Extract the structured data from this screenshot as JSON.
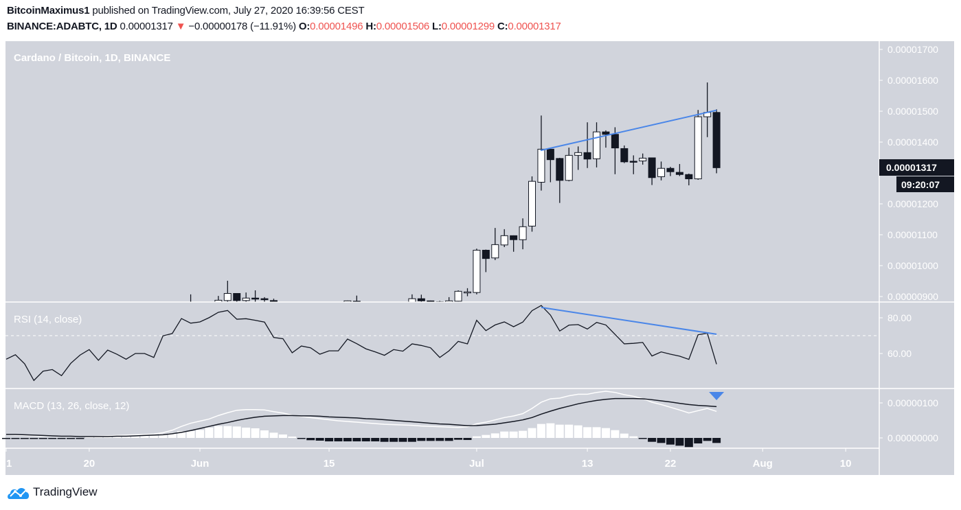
{
  "header": {
    "author": "BitcoinMaximus1",
    "published": " published on TradingView.com, July 27, 2020 16:39:56 CEST",
    "symbol": "BINANCE:ADABTC, 1D",
    "last": " 0.00001317",
    "change_icon": "down-triangle-icon",
    "change": " −0.00000178 (−11.91%)",
    "o_label": "O:",
    "o": "0.00001496",
    "h_label": "H:",
    "h": "0.00001506",
    "l_label": "L:",
    "l": "0.00001299",
    "c_label": "C:",
    "c": "0.00001317"
  },
  "footer": {
    "logo_text": "TradingView",
    "logo_icon": "tradingview-cloud-icon"
  },
  "colors": {
    "background": "#d1d4dc",
    "up_candle": "#ffffff",
    "down_candle": "#131722",
    "trendline": "#4a86e8",
    "negative": "#ef5350",
    "label_bg": "#131722"
  },
  "chart_data": [
    {
      "type": "candlestick",
      "title": "Cardano / Bitcoin, 1D, BINANCE",
      "price_ticks": [
        "0.00001700",
        "0.00001600",
        "0.00001500",
        "0.00001400",
        "0.00001200",
        "0.00001100",
        "0.00001000",
        "0.00000900"
      ],
      "ylim": [
        8.75e-06,
        1.74e-05
      ],
      "last_price_label": "0.00001317",
      "countdown_label": "09:20:07",
      "x_ticks": [
        {
          "label": "1",
          "date": "2020-05-11"
        },
        {
          "label": "20",
          "date": "2020-05-20"
        },
        {
          "label": "Jun",
          "date": "2020-06-01"
        },
        {
          "label": "15",
          "date": "2020-06-15"
        },
        {
          "label": "Jul",
          "date": "2020-07-01"
        },
        {
          "label": "13",
          "date": "2020-07-13"
        },
        {
          "label": "22",
          "date": "2020-07-22"
        },
        {
          "label": "Aug",
          "date": "2020-08-01"
        },
        {
          "label": "10",
          "date": "2020-08-10"
        }
      ],
      "candles_columns": [
        "date",
        "open",
        "high",
        "low",
        "close"
      ],
      "candles": [
        [
          "2020-05-31",
          8.7e-06,
          9.07e-06,
          8.5e-06,
          8.8e-06
        ],
        [
          "2020-06-03",
          8.8e-06,
          9.02e-06,
          8.7e-06,
          8.88e-06
        ],
        [
          "2020-06-04",
          8.87e-06,
          9.51e-06,
          8.8e-06,
          9.1e-06
        ],
        [
          "2020-06-05",
          9.1e-06,
          9.11e-06,
          8.75e-06,
          8.87e-06
        ],
        [
          "2020-06-06",
          8.87e-06,
          9.13e-06,
          8.8e-06,
          8.95e-06
        ],
        [
          "2020-06-07",
          8.95e-06,
          9.2e-06,
          8.78e-06,
          8.93e-06
        ],
        [
          "2020-06-08",
          8.93e-06,
          8.98e-06,
          8.8e-06,
          8.9e-06
        ],
        [
          "2020-06-09",
          8.87e-06,
          8.93e-06,
          8.75e-06,
          8.85e-06
        ],
        [
          "2020-06-17",
          8.78e-06,
          8.87e-06,
          8.7e-06,
          8.86e-06
        ],
        [
          "2020-06-18",
          8.85e-06,
          9.03e-06,
          8.75e-06,
          8.84e-06
        ],
        [
          "2020-06-24",
          8.82e-06,
          9.07e-06,
          8.75e-06,
          8.93e-06
        ],
        [
          "2020-06-25",
          8.93e-06,
          9.06e-06,
          8.8e-06,
          8.86e-06
        ],
        [
          "2020-06-26",
          8.86e-06,
          8.87e-06,
          8.75e-06,
          8.82e-06
        ],
        [
          "2020-06-27",
          8.83e-06,
          8.86e-06,
          8.75e-06,
          8.82e-06
        ],
        [
          "2020-06-28",
          8.82e-06,
          8.98e-06,
          8.75e-06,
          8.86e-06
        ],
        [
          "2020-06-29",
          8.85e-06,
          9.2e-06,
          8.84e-06,
          9.17e-06
        ],
        [
          "2020-06-30",
          9.14e-06,
          9.27e-06,
          9.01e-06,
          9.15e-06
        ],
        [
          "2020-07-01",
          9.13e-06,
          1.055e-05,
          9.07e-06,
          1.05e-05
        ],
        [
          "2020-07-02",
          1.05e-05,
          1.052e-05,
          9.79e-06,
          1.023e-05
        ],
        [
          "2020-07-03",
          1.025e-05,
          1.122e-05,
          1.018e-05,
          1.068e-05
        ],
        [
          "2020-07-04",
          1.067e-05,
          1.118e-05,
          1.06e-05,
          1.097e-05
        ],
        [
          "2020-07-05",
          1.097e-05,
          1.098e-05,
          1.045e-05,
          1.084e-05
        ],
        [
          "2020-07-06",
          1.084e-05,
          1.153e-05,
          1.053e-05,
          1.126e-05
        ],
        [
          "2020-07-07",
          1.128e-05,
          1.289e-05,
          1.11e-05,
          1.273e-05
        ],
        [
          "2020-07-08",
          1.27e-05,
          1.486e-05,
          1.243e-05,
          1.377e-05
        ],
        [
          "2020-07-09",
          1.377e-05,
          1.378e-05,
          1.27e-05,
          1.343e-05
        ],
        [
          "2020-07-10",
          1.347e-05,
          1.349e-05,
          1.203e-05,
          1.276e-05
        ],
        [
          "2020-07-11",
          1.276e-05,
          1.382e-05,
          1.273e-05,
          1.357e-05
        ],
        [
          "2020-07-12",
          1.357e-05,
          1.386e-05,
          1.31e-05,
          1.366e-05
        ],
        [
          "2020-07-13",
          1.366e-05,
          1.464e-05,
          1.316e-05,
          1.345e-05
        ],
        [
          "2020-07-14",
          1.346e-05,
          1.464e-05,
          1.318e-05,
          1.433e-05
        ],
        [
          "2020-07-15",
          1.433e-05,
          1.438e-05,
          1.382e-05,
          1.425e-05
        ],
        [
          "2020-07-16",
          1.425e-05,
          1.448e-05,
          1.296e-05,
          1.381e-05
        ],
        [
          "2020-07-17",
          1.379e-05,
          1.389e-05,
          1.332e-05,
          1.336e-05
        ],
        [
          "2020-07-18",
          1.338e-05,
          1.357e-05,
          1.296e-05,
          1.335e-05
        ],
        [
          "2020-07-19",
          1.339e-05,
          1.363e-05,
          1.327e-05,
          1.348e-05
        ],
        [
          "2020-07-20",
          1.349e-05,
          1.35e-05,
          1.261e-05,
          1.285e-05
        ],
        [
          "2020-07-21",
          1.288e-05,
          1.337e-05,
          1.276e-05,
          1.315e-05
        ],
        [
          "2020-07-22",
          1.315e-05,
          1.32e-05,
          1.29e-05,
          1.304e-05
        ],
        [
          "2020-07-23",
          1.302e-05,
          1.329e-05,
          1.29e-05,
          1.295e-05
        ],
        [
          "2020-07-24",
          1.295e-05,
          1.298e-05,
          1.26e-05,
          1.281e-05
        ],
        [
          "2020-07-25",
          1.281e-05,
          1.504e-05,
          1.278e-05,
          1.482e-05
        ],
        [
          "2020-07-26",
          1.482e-05,
          1.593e-05,
          1.416e-05,
          1.496e-05
        ],
        [
          "2020-07-27",
          1.496e-05,
          1.506e-05,
          1.299e-05,
          1.317e-05
        ]
      ],
      "trendline": {
        "from": [
          "2020-07-08",
          1.373e-05
        ],
        "to": [
          "2020-07-27",
          1.503e-05
        ]
      }
    },
    {
      "type": "line",
      "title": "RSI (14, close)",
      "y_ticks": [
        "80.00",
        "60.00"
      ],
      "level": 70,
      "start_date": "2020-05-11",
      "values": [
        56.8,
        59.3,
        54.2,
        44.9,
        50.1,
        51,
        47.6,
        54.5,
        59.1,
        62.2,
        56.2,
        61.9,
        59.6,
        56.8,
        60,
        60,
        57.8,
        69.9,
        71.2,
        79.6,
        77,
        77.7,
        80.1,
        83.1,
        84.1,
        79.2,
        79.5,
        78.6,
        77.6,
        69,
        68.3,
        60.4,
        64.2,
        63.2,
        59.6,
        61.5,
        61.5,
        68.1,
        65.5,
        62.6,
        60.9,
        59,
        62.2,
        61.3,
        65.4,
        64.5,
        63.2,
        57.8,
        61.5,
        66.8,
        65.4,
        78.6,
        72.8,
        76,
        77.7,
        75,
        77.6,
        84,
        86.9,
        81.5,
        72.6,
        75.9,
        76.2,
        73.7,
        77.4,
        76,
        70.7,
        65.4,
        65.7,
        66.2,
        58.6,
        60.9,
        59.6,
        58.5,
        56.7,
        70.5,
        71.4,
        54
      ],
      "trendline": {
        "from": [
          "2020-07-08",
          85.8
        ],
        "to": [
          "2020-07-27",
          70.8
        ]
      }
    },
    {
      "type": "line+bar",
      "title": "MACD (13, 26, close, 12)",
      "y_ticks": [
        "0.00000100",
        "0.00000000"
      ],
      "start_date": "2020-05-11",
      "macd": [
        9e-08,
        8e-08,
        7e-08,
        6e-08,
        5e-08,
        5e-08,
        4e-08,
        4e-08,
        4e-08,
        4e-08,
        5e-08,
        6e-08,
        7e-08,
        8e-08,
        9e-08,
        1e-07,
        1.1e-07,
        1.5e-07,
        2.2e-07,
        3.3e-07,
        4.2e-07,
        4.8e-07,
        5.4e-07,
        6.4e-07,
        7.2e-07,
        7.9e-07,
        8.1e-07,
        8.1e-07,
        8e-07,
        7.5e-07,
        7.1e-07,
        6.5e-07,
        6.1e-07,
        5.8e-07,
        5.5e-07,
        5.2e-07,
        4.9e-07,
        4.7e-07,
        4.5e-07,
        4.3e-07,
        4.1e-07,
        3.9e-07,
        3.8e-07,
        3.7e-07,
        3.6e-07,
        3.4e-07,
        3.3e-07,
        3.2e-07,
        3.1e-07,
        3e-07,
        3.2e-07,
        4.05e-07,
        4.5e-07,
        5.16e-07,
        5.82e-07,
        6.27e-07,
        6.93e-07,
        8.43e-07,
        1.02e-06,
        1.118e-06,
        1.137e-06,
        1.203e-06,
        1.248e-06,
        1.248e-06,
        1.3e-06,
        1.333e-06,
        1.3e-06,
        1.235e-06,
        1.19e-06,
        1.124e-06,
        1.02e-06,
        9.54e-07,
        8.76e-07,
        7.98e-07,
        7.13e-07,
        7.78e-07,
        8.43e-07,
        7.59e-07
      ],
      "signal": [
        1e-07,
        1e-07,
        9e-08,
        8e-08,
        7e-08,
        6e-08,
        5e-08,
        5e-08,
        4e-08,
        4e-08,
        4e-08,
        4e-08,
        5e-08,
        5e-08,
        6e-08,
        7e-08,
        8e-08,
        9e-08,
        1.2e-07,
        1.6e-07,
        2.1e-07,
        2.7e-07,
        3.3e-07,
        3.9e-07,
        4.4e-07,
        5e-07,
        5.5e-07,
        5.9e-07,
        6.2e-07,
        6.3e-07,
        6.4e-07,
        6.4e-07,
        6.3e-07,
        6.3e-07,
        6.2e-07,
        6e-07,
        5.9e-07,
        5.8e-07,
        5.7e-07,
        5.5e-07,
        5.4e-07,
        5.2e-07,
        5e-07,
        4.8e-07,
        4.6e-07,
        4.4e-07,
        4.2e-07,
        4e-07,
        3.9e-07,
        3.7e-07,
        3.5e-07,
        3.53e-07,
        3.73e-07,
        3.92e-07,
        4.31e-07,
        4.7e-07,
        5.16e-07,
        5.82e-07,
        6.8e-07,
        7.65e-07,
        8.43e-07,
        9.08e-07,
        9.74e-07,
        1.026e-06,
        1.072e-06,
        1.104e-06,
        1.124e-06,
        1.124e-06,
        1.124e-06,
        1.118e-06,
        1.092e-06,
        1.059e-06,
        1.026e-06,
        9.87e-07,
        9.54e-07,
        9.28e-07,
        9.15e-07,
        8.95e-07
      ],
      "histogram": [
        -3e-08,
        -3e-08,
        -3e-08,
        -3e-08,
        -3e-08,
        -3e-08,
        -3e-08,
        -3e-08,
        -3e-08,
        5e-08,
        5e-08,
        6e-08,
        6e-08,
        6e-08,
        6e-08,
        6e-08,
        7e-08,
        1.18e-07,
        1.44e-07,
        1.96e-07,
        1.96e-07,
        2.29e-07,
        2.94e-07,
        3.4e-07,
        3.4e-07,
        3.27e-07,
        2.94e-07,
        2.75e-07,
        2.16e-07,
        1.5e-07,
        9.8e-08,
        3.9e-08,
        -2e-08,
        -6.5e-08,
        -7.8e-08,
        -9.8e-08,
        -9.8e-08,
        -9.8e-08,
        -9.8e-08,
        -9.8e-08,
        -9.8e-08,
        -1.11e-07,
        -1.11e-07,
        -1.11e-07,
        -1.11e-07,
        -8.5e-08,
        -8.5e-08,
        -8.5e-08,
        -8.5e-08,
        -5.2e-08,
        -5.9e-08,
        4.6e-08,
        8.5e-08,
        1.3e-07,
        1.83e-07,
        1.83e-07,
        2.03e-07,
        2.81e-07,
        3.99e-07,
        4.18e-07,
        3.79e-07,
        3.79e-07,
        3.59e-07,
        3.07e-07,
        3.07e-07,
        2.81e-07,
        2.22e-07,
        1.24e-07,
        4.6e-08,
        -2.6e-08,
        -1.11e-07,
        -1.44e-07,
        -1.9e-07,
        -2.22e-07,
        -2.61e-07,
        -1.57e-07,
        -8.5e-08,
        -1.44e-07
      ],
      "marker": {
        "date": "2020-07-27",
        "icon": "down-triangle-icon"
      }
    }
  ]
}
